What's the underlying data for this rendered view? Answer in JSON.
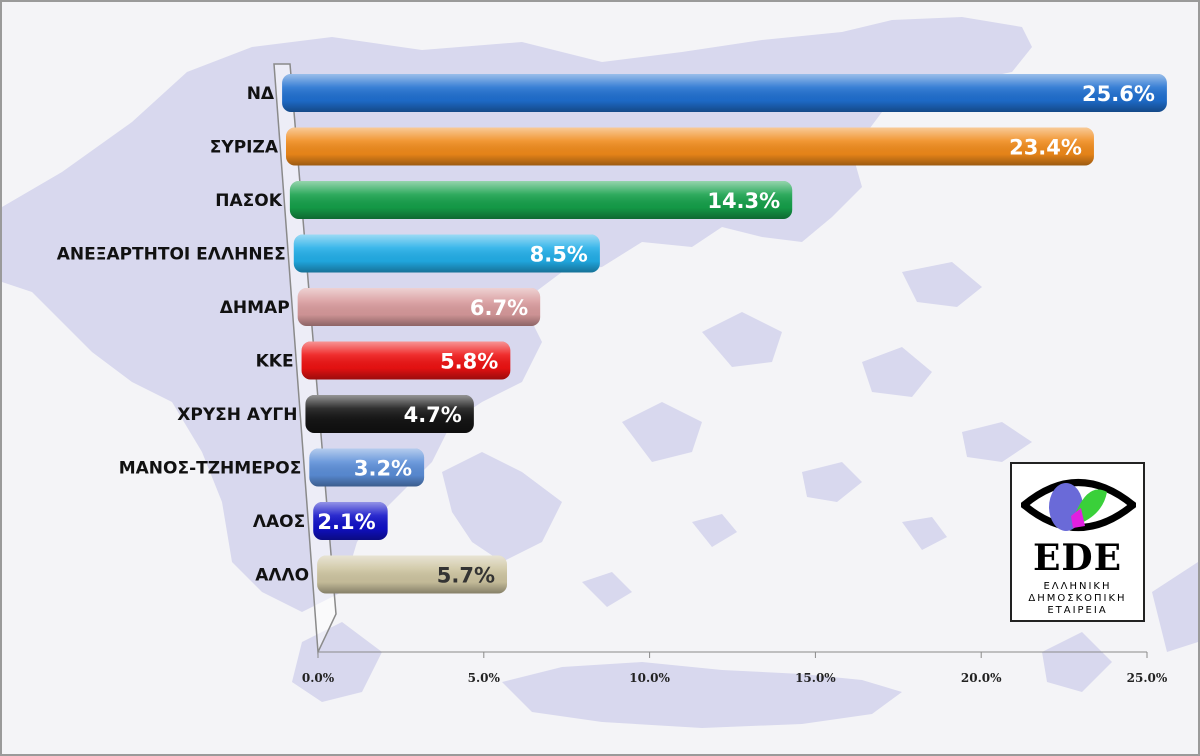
{
  "chart_data": {
    "type": "bar",
    "orientation": "horizontal",
    "categories": [
      "ΝΔ",
      "ΣΥΡΙΖΑ",
      "ΠΑΣΟΚ",
      "ΑΝΕΞΑΡΤΗΤΟΙ ΕΛΛΗΝΕΣ",
      "ΔΗΜΑΡ",
      "ΚΚΕ",
      "ΧΡΥΣΗ ΑΥΓΗ",
      "ΜΑΝΟΣ-ΤΖΗΜΕΡΟΣ",
      "ΛΑΟΣ",
      "ΑΛΛΟ"
    ],
    "values": [
      25.6,
      23.4,
      14.3,
      8.5,
      6.7,
      5.8,
      4.7,
      3.2,
      2.1,
      5.7
    ],
    "value_labels": [
      "25.6%",
      "23.4%",
      "14.3%",
      "8.5%",
      "6.7%",
      "5.8%",
      "4.7%",
      "3.2%",
      "2.1%",
      "5.7%"
    ],
    "colors": [
      "#1f6fd0",
      "#f08a1a",
      "#15a04a",
      "#22aee8",
      "#d89a9c",
      "#ee1212",
      "#151515",
      "#5b8ed8",
      "#1010c8",
      "#cdc4a0"
    ],
    "label_colors": [
      "#ffffff",
      "#ffffff",
      "#ffffff",
      "#ffffff",
      "#ffffff",
      "#ffffff",
      "#ffffff",
      "#ffffff",
      "#ffffff",
      "#333333"
    ],
    "xlim": [
      0,
      25
    ],
    "x_ticks": [
      0,
      5,
      10,
      15,
      20,
      25
    ],
    "x_tick_labels": [
      "0.0%",
      "5.0%",
      "10.0%",
      "15.0%",
      "20.0%",
      "25.0%"
    ],
    "title": "",
    "xlabel": "",
    "ylabel": "",
    "grid": false,
    "legend": "none",
    "background": "map of Greece"
  },
  "logo": {
    "icon": "eye-icon",
    "word": "EDE",
    "sub_lines": [
      "ΕΛΛΗΝΙΚΗ",
      "ΔΗΜΟΣΚΟΠΙΚΗ",
      "ΕΤΑΙΡΕΙΑ"
    ]
  }
}
